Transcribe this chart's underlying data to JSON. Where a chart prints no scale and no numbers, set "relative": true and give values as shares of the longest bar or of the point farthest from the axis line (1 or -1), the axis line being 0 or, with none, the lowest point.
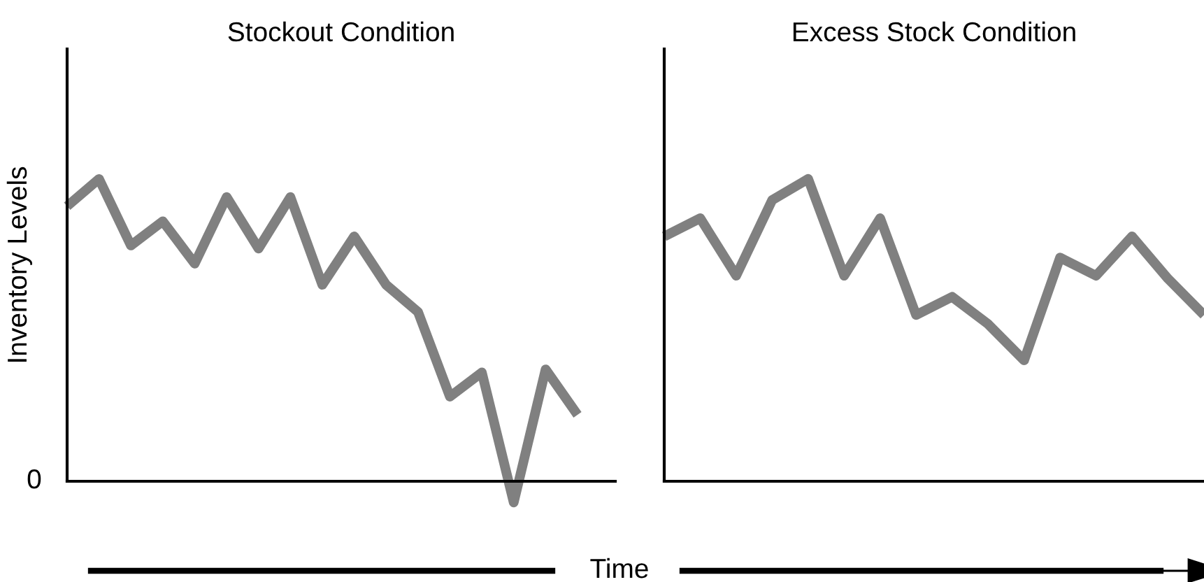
{
  "chart_data": [
    {
      "type": "line",
      "title": "Stockout Condition",
      "ylabel": "Inventory Levels",
      "xlabel": "Time",
      "relative": true,
      "annotations": [
        "0"
      ],
      "categories": [
        null,
        null,
        null,
        null,
        null,
        null,
        null,
        null,
        null,
        null,
        null,
        null,
        null,
        null,
        null,
        null,
        null
      ],
      "series": [
        {
          "color": "#808080",
          "values": [
            0.91,
            1.0,
            0.78,
            0.86,
            0.72,
            0.94,
            0.77,
            0.94,
            0.65,
            0.81,
            0.65,
            0.56,
            0.28,
            0.36,
            -0.07,
            0.37,
            0.22
          ]
        }
      ]
    },
    {
      "type": "line",
      "title": "Excess Stock Condition",
      "relative": true,
      "categories": [
        null,
        null,
        null,
        null,
        null,
        null,
        null,
        null,
        null,
        null,
        null,
        null,
        null,
        null,
        null,
        null
      ],
      "series": [
        {
          "color": "#808080",
          "values": [
            0.81,
            0.87,
            0.68,
            0.93,
            1.0,
            0.68,
            0.87,
            0.55,
            0.61,
            0.52,
            0.4,
            0.74,
            0.68,
            0.81,
            0.67,
            0.55
          ]
        }
      ]
    }
  ]
}
